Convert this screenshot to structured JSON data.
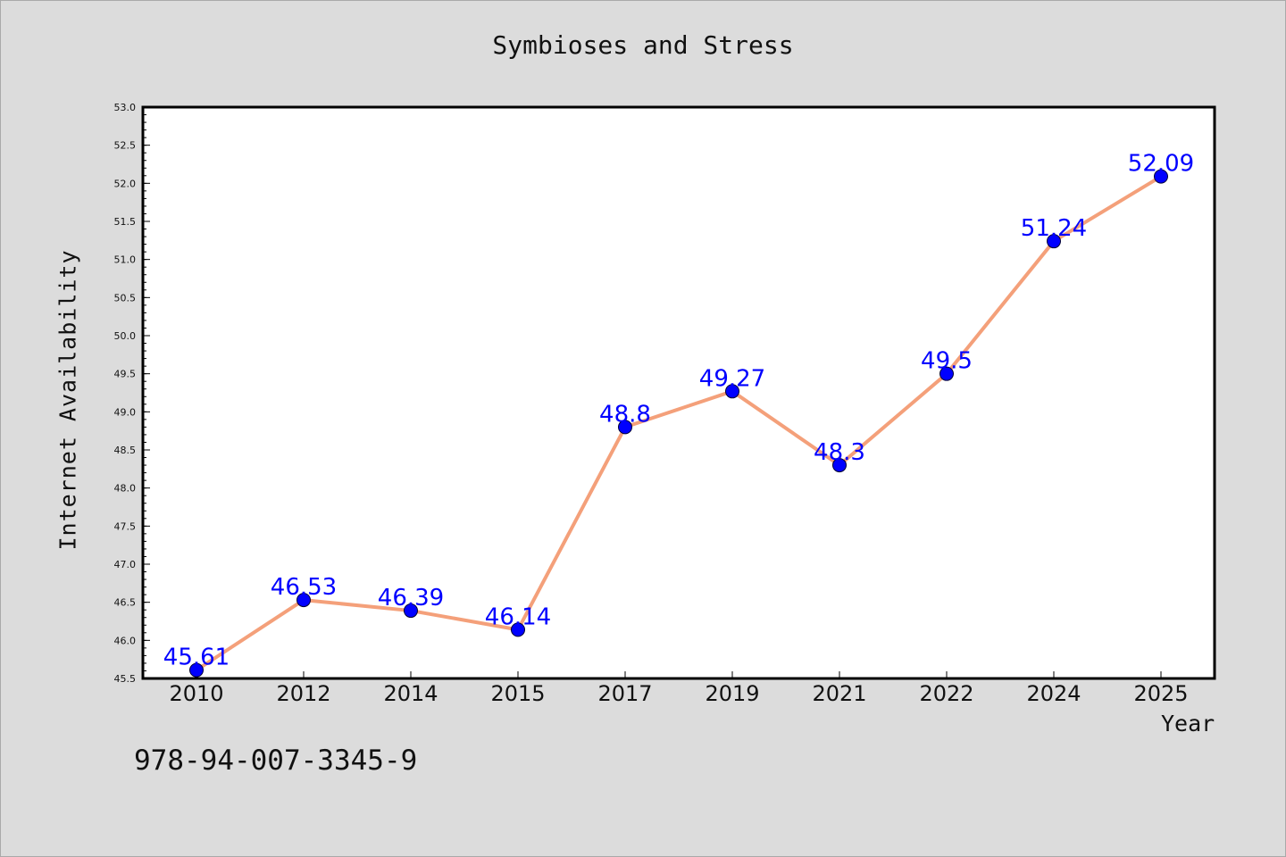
{
  "chart_data": {
    "type": "line",
    "title": "Symbioses and Stress",
    "xlabel": "Year",
    "ylabel": "Internet Availability",
    "categories": [
      "2010",
      "2012",
      "2014",
      "2015",
      "2017",
      "2019",
      "2021",
      "2022",
      "2024",
      "2025"
    ],
    "series": [
      {
        "values": [
          45.61,
          46.53,
          46.39,
          46.14,
          48.8,
          49.27,
          48.3,
          49.5,
          51.24,
          52.09
        ],
        "data_labels": [
          "45.61",
          "46.53",
          "46.39",
          "46.14",
          "48.8",
          "49.27",
          "48.3",
          "49.5",
          "51.24",
          "52.09"
        ]
      }
    ],
    "ylim": [
      45.5,
      53.0
    ],
    "yticks": [
      "45.5",
      "46.0",
      "46.5",
      "47.0",
      "47.5",
      "48.0",
      "48.5",
      "49.0",
      "49.5",
      "50.0",
      "50.5",
      "51.0",
      "51.5",
      "52.0",
      "52.5",
      "53.0"
    ],
    "grid": false,
    "legend": "none",
    "colors": {
      "line": "#f4a07a",
      "marker": "#0000ff",
      "data_label": "#0000ff",
      "plot_background": "#ffffff",
      "page_background": "#dcdcdc"
    }
  },
  "footer": {
    "isbn": "978-94-007-3345-9"
  }
}
